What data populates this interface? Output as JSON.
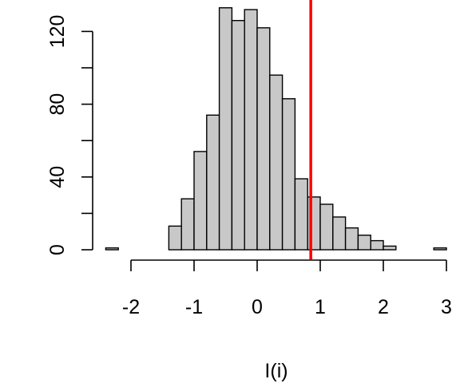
{
  "chart_data": {
    "type": "bar",
    "subtype": "histogram",
    "xlabel": "I(i)",
    "ylabel": "",
    "bin_width": 0.2,
    "bins_start": [
      -2.4,
      -2.2,
      -2.0,
      -1.8,
      -1.6,
      -1.4,
      -1.2,
      -1.0,
      -0.8,
      -0.6,
      -0.4,
      -0.2,
      0.0,
      0.2,
      0.4,
      0.6,
      0.8,
      1.0,
      1.2,
      1.4,
      1.6,
      1.8,
      2.0,
      2.2,
      2.4,
      2.6,
      2.8
    ],
    "values": [
      1,
      0,
      0,
      0,
      0,
      13,
      28,
      54,
      74,
      133,
      126,
      132,
      122,
      96,
      83,
      39,
      29,
      25,
      18,
      12,
      8,
      5,
      2,
      0,
      0,
      0,
      1
    ],
    "x_ticks": [
      -2,
      -1,
      0,
      1,
      2,
      3
    ],
    "y_ticks": [
      0,
      40,
      80,
      120
    ],
    "xlim": [
      -2.6,
      3.0
    ],
    "ylim": [
      0,
      140
    ],
    "reference_line": {
      "x": 0.85,
      "color": "#ff0000"
    },
    "bar_color": "#c8c8c8",
    "grid": false
  }
}
